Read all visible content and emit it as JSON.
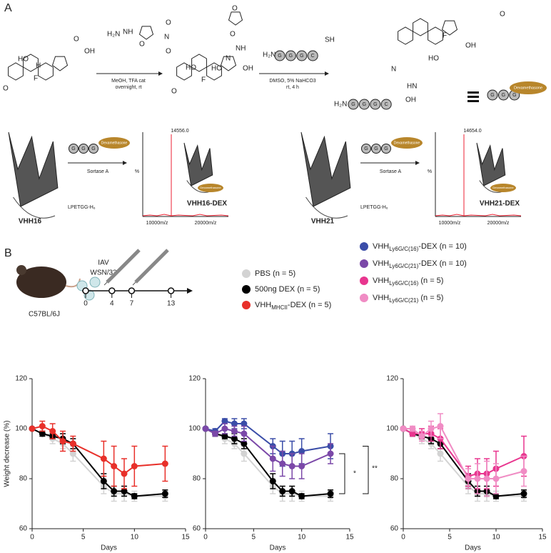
{
  "panel_labels": [
    "A",
    "B"
  ],
  "panel_a": {
    "atoms": {
      "O": "O",
      "OH": "OH",
      "HO": "HO",
      "F": "F",
      "H": "H",
      "N": "N",
      "NH": "NH",
      "HN": "HN",
      "SH": "SH",
      "H2N": "H₂N"
    },
    "step1": [
      "MeOH, TFA cat",
      "overnight, rt"
    ],
    "step2": [
      "DMSO, 5% NaHCO3",
      "rt, 4 h"
    ],
    "peptide": [
      "G",
      "G",
      "G",
      "C"
    ],
    "dexamethasone": "Dexamethasone",
    "conjugations": [
      {
        "protein": "VHH16",
        "tag": "LPETGG-H₆",
        "enzyme": "Sortase A",
        "product": "VHH16-DEX",
        "peak": "14556.0"
      },
      {
        "protein": "VHH21",
        "tag": "LPETGG-H₆",
        "enzyme": "Sortase A",
        "product": "VHH21-DEX",
        "peak": "14654.0"
      }
    ],
    "ms_axis": {
      "y": "%",
      "x_ticks": [
        "10000m/z",
        "20000m/z"
      ]
    }
  },
  "panel_b": {
    "virus": [
      "IAV",
      "WSN/33"
    ],
    "strain": "C57BL/6J",
    "timeline_days": [
      0,
      4,
      7,
      13
    ],
    "legend": [
      {
        "color": "#d3d3d3",
        "text": "PBS  (n = 5)"
      },
      {
        "color": "#000000",
        "text": "500ng DEX (n = 5)"
      },
      {
        "color": "#e8302a",
        "text": "VHH",
        "sub": "MHCII",
        "suffix": "-DEX  (n = 5)"
      },
      {
        "color": "#3a4da8",
        "text": "VHH",
        "sub": "Ly6G/C(16)",
        "suffix": "-DEX (n = 10)"
      },
      {
        "color": "#7b48a8",
        "text": "VHH",
        "sub": "Ly6G/C(21)",
        "suffix": "-DEX (n = 10)"
      },
      {
        "color": "#e8368f",
        "text": "VHH",
        "sub": "Ly6G/C(16)",
        "suffix": " (n = 5)"
      },
      {
        "color": "#f08cc4",
        "text": "VHH",
        "sub": "Ly6G/C(21)",
        "suffix": " (n = 5)"
      }
    ]
  },
  "chart_data": [
    {
      "type": "line",
      "ylabel": "Weight decrease (%)",
      "xlabel": "Days",
      "x": [
        0,
        1,
        2,
        3,
        4,
        7,
        8,
        9,
        10,
        13
      ],
      "xlim": [
        0,
        15
      ],
      "xticks": [
        0,
        5,
        10,
        15
      ],
      "ylim": [
        60,
        120
      ],
      "yticks": [
        60,
        80,
        100,
        120
      ],
      "series": [
        {
          "color": "#d3d3d3",
          "values": [
            100,
            98,
            96,
            94,
            90,
            77,
            74,
            74,
            73,
            73
          ],
          "errors": [
            0,
            1,
            2,
            2,
            3,
            3,
            3,
            3,
            2,
            2
          ]
        },
        {
          "color": "#000000",
          "values": [
            100,
            98,
            97,
            96,
            94,
            79,
            75,
            75,
            73,
            74
          ],
          "errors": [
            0,
            1,
            1,
            2,
            2,
            3,
            2,
            2,
            1,
            1.5
          ]
        },
        {
          "color": "#e8302a",
          "values": [
            100,
            101,
            99,
            95,
            94,
            88,
            85,
            82,
            85,
            86
          ],
          "errors": [
            0,
            2,
            3,
            4,
            3,
            7,
            8,
            6,
            8,
            7
          ]
        }
      ]
    },
    {
      "type": "line",
      "xlabel": "Days",
      "x": [
        0,
        1,
        2,
        3,
        4,
        7,
        8,
        9,
        10,
        13
      ],
      "xlim": [
        0,
        15
      ],
      "xticks": [
        0,
        5,
        10,
        15
      ],
      "ylim": [
        60,
        120
      ],
      "yticks": [
        60,
        80,
        100,
        120
      ],
      "annotations": [
        "*",
        "**"
      ],
      "series": [
        {
          "color": "#d3d3d3",
          "values": [
            100,
            98,
            96,
            94,
            90,
            77,
            74,
            74,
            73,
            73
          ],
          "errors": [
            0,
            1,
            2,
            2,
            3,
            3,
            3,
            3,
            2,
            2
          ]
        },
        {
          "color": "#000000",
          "values": [
            100,
            98,
            97,
            96,
            94,
            79,
            75,
            75,
            73,
            74
          ],
          "errors": [
            0,
            1,
            1,
            2,
            2,
            3,
            2,
            2,
            1,
            1.5
          ]
        },
        {
          "color": "#3a4da8",
          "values": [
            100,
            99,
            103,
            102,
            102,
            93,
            90,
            90,
            91,
            93
          ],
          "errors": [
            0,
            1,
            1,
            2,
            2,
            3,
            5,
            5,
            5,
            5
          ]
        },
        {
          "color": "#7b48a8",
          "values": [
            100,
            98,
            100,
            99,
            98,
            88,
            86,
            85,
            85,
            90
          ],
          "errors": [
            0,
            1,
            2,
            2,
            3,
            5,
            5,
            5,
            5,
            4
          ]
        }
      ]
    },
    {
      "type": "line",
      "xlabel": "Days",
      "x": [
        0,
        1,
        2,
        3,
        4,
        7,
        8,
        9,
        10,
        13
      ],
      "xlim": [
        0,
        15
      ],
      "xticks": [
        0,
        5,
        10,
        15
      ],
      "ylim": [
        60,
        120
      ],
      "yticks": [
        60,
        80,
        100,
        120
      ],
      "series": [
        {
          "color": "#d3d3d3",
          "values": [
            100,
            98,
            96,
            94,
            90,
            77,
            74,
            74,
            73,
            73
          ],
          "errors": [
            0,
            1,
            2,
            2,
            3,
            3,
            3,
            3,
            2,
            2
          ]
        },
        {
          "color": "#000000",
          "values": [
            100,
            98,
            97,
            96,
            94,
            79,
            75,
            75,
            73,
            74
          ],
          "errors": [
            0,
            1,
            1,
            2,
            2,
            3,
            2,
            2,
            1,
            1.5
          ]
        },
        {
          "color": "#e8368f",
          "values": [
            100,
            98,
            98,
            98,
            96,
            81,
            82,
            82,
            84,
            89
          ],
          "errors": [
            0,
            1,
            2,
            3,
            4,
            4,
            6,
            6,
            7,
            8
          ]
        },
        {
          "color": "#f08cc4",
          "values": [
            100,
            100,
            97,
            100,
            101,
            80,
            80,
            80,
            80,
            83
          ],
          "errors": [
            0,
            1,
            2,
            3,
            5,
            4,
            6,
            7,
            6,
            6
          ]
        }
      ]
    }
  ]
}
